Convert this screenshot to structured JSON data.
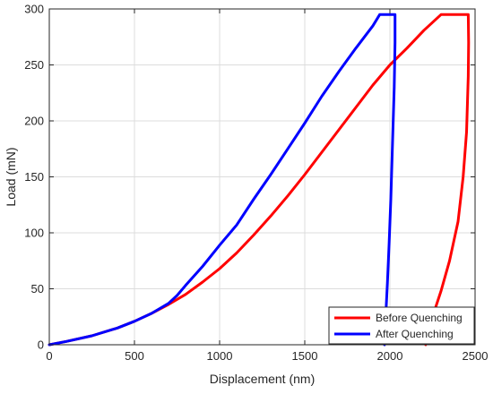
{
  "chart_data": {
    "type": "line",
    "title": "",
    "xlabel": "Displacement (nm)",
    "ylabel": "Load (mN)",
    "xlim": [
      0,
      2500
    ],
    "ylim": [
      0,
      300
    ],
    "xticks": [
      0,
      500,
      1000,
      1500,
      2000,
      2500
    ],
    "yticks": [
      0,
      50,
      100,
      150,
      200,
      250,
      300
    ],
    "xtick_labels": [
      "0",
      "500",
      "1000",
      "1500",
      "2000",
      "2500"
    ],
    "ytick_labels": [
      "0",
      "50",
      "100",
      "150",
      "200",
      "250",
      "300"
    ],
    "grid": true,
    "legend_position": "bottom-right",
    "series": [
      {
        "name": "Before Quenching",
        "color": "#ff0000",
        "points": [
          [
            0,
            0
          ],
          [
            100,
            3
          ],
          [
            250,
            8
          ],
          [
            400,
            15
          ],
          [
            500,
            21
          ],
          [
            600,
            28
          ],
          [
            700,
            36
          ],
          [
            800,
            45
          ],
          [
            900,
            56
          ],
          [
            1000,
            68
          ],
          [
            1100,
            82
          ],
          [
            1200,
            98
          ],
          [
            1300,
            115
          ],
          [
            1400,
            133
          ],
          [
            1500,
            152
          ],
          [
            1600,
            172
          ],
          [
            1700,
            192
          ],
          [
            1800,
            212
          ],
          [
            1900,
            232
          ],
          [
            2000,
            250
          ],
          [
            2100,
            265
          ],
          [
            2200,
            281
          ],
          [
            2300,
            295
          ],
          [
            2350,
            295
          ],
          [
            2400,
            295
          ],
          [
            2450,
            295
          ],
          [
            2460,
            295
          ],
          [
            2462,
            270
          ],
          [
            2460,
            240
          ],
          [
            2450,
            190
          ],
          [
            2430,
            150
          ],
          [
            2400,
            110
          ],
          [
            2350,
            75
          ],
          [
            2300,
            48
          ],
          [
            2250,
            25
          ],
          [
            2220,
            10
          ],
          [
            2210,
            0
          ]
        ]
      },
      {
        "name": "After Quenching",
        "color": "#0000ff",
        "points": [
          [
            0,
            0
          ],
          [
            100,
            3
          ],
          [
            250,
            8
          ],
          [
            400,
            15
          ],
          [
            500,
            21
          ],
          [
            600,
            28
          ],
          [
            700,
            37
          ],
          [
            750,
            44
          ],
          [
            800,
            53
          ],
          [
            900,
            70
          ],
          [
            1000,
            89
          ],
          [
            1100,
            107
          ],
          [
            1200,
            130
          ],
          [
            1300,
            152
          ],
          [
            1400,
            175
          ],
          [
            1500,
            198
          ],
          [
            1600,
            222
          ],
          [
            1700,
            244
          ],
          [
            1800,
            265
          ],
          [
            1900,
            285
          ],
          [
            1940,
            295
          ],
          [
            1980,
            295
          ],
          [
            2010,
            295
          ],
          [
            2030,
            295
          ],
          [
            2030,
            270
          ],
          [
            2025,
            230
          ],
          [
            2015,
            180
          ],
          [
            2005,
            130
          ],
          [
            1995,
            90
          ],
          [
            1985,
            55
          ],
          [
            1975,
            25
          ],
          [
            1968,
            0
          ]
        ]
      }
    ]
  }
}
